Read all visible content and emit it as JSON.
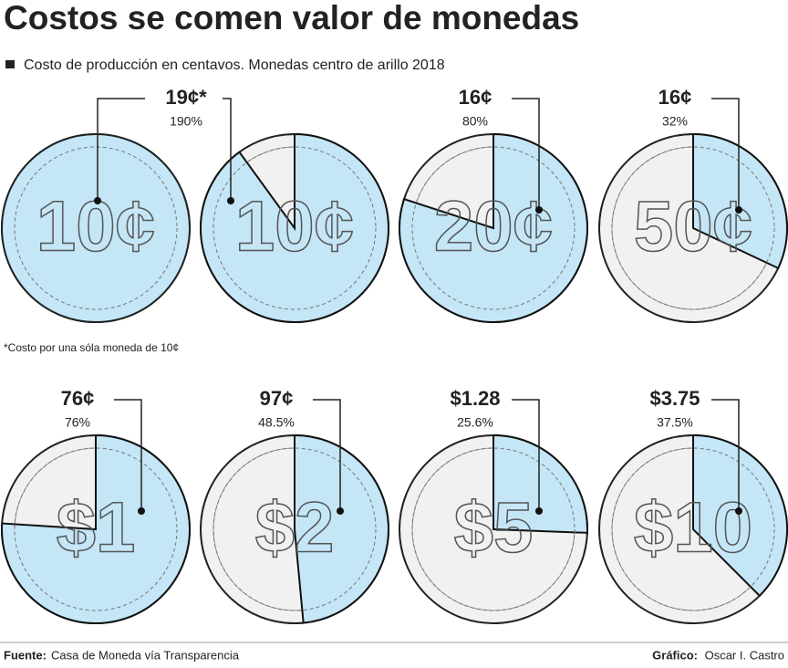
{
  "title": "Costos se comen valor de monedas",
  "subtitle": "Costo de producción en centavos. Monedas centro de arillo 2018",
  "note": "*Costo por una sóla moneda de 10¢",
  "source_label": "Fuente:",
  "source": "Casa de Moneda vía Transparencia",
  "credit_label": "Gráfico:",
  "credit": "Oscar I. Castro",
  "chart_data": [
    {
      "type": "pie",
      "title": "19¢*",
      "coin": "10¢",
      "values": [
        190
      ],
      "value_labels": [
        "190%"
      ],
      "color": "#c4e6f6"
    },
    {
      "type": "pie",
      "title": "16¢",
      "coin": "20¢",
      "values": [
        80
      ],
      "value_labels": [
        "80%"
      ],
      "color": "#c4e6f6"
    },
    {
      "type": "pie",
      "title": "16¢",
      "coin": "50¢",
      "values": [
        32
      ],
      "value_labels": [
        "32%"
      ],
      "color": "#c4e6f6"
    },
    {
      "type": "pie",
      "title": "76¢",
      "coin": "$1",
      "values": [
        76
      ],
      "value_labels": [
        "76%"
      ],
      "color": "#c4e6f6"
    },
    {
      "type": "pie",
      "title": "97¢",
      "coin": "$2",
      "values": [
        48.5
      ],
      "value_labels": [
        "48.5%"
      ],
      "color": "#c4e6f6"
    },
    {
      "type": "pie",
      "title": "$1.28",
      "coin": "$5",
      "values": [
        25.6
      ],
      "value_labels": [
        "25.6%"
      ],
      "color": "#c4e6f6"
    },
    {
      "type": "pie",
      "title": "$3.75",
      "coin": "$10",
      "values": [
        37.5
      ],
      "value_labels": [
        "37.5%"
      ],
      "color": "#c4e6f6"
    }
  ]
}
